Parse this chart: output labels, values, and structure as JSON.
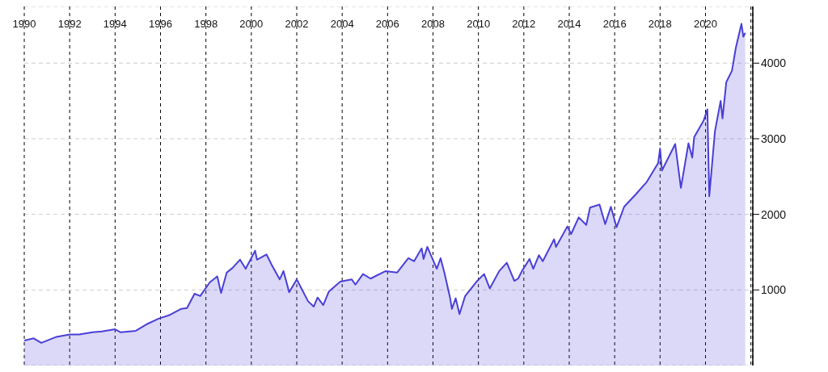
{
  "chart_data": {
    "type": "area",
    "x": [
      "1990-01",
      "1990-06",
      "1990-10",
      "1991-01",
      "1991-06",
      "1992-01",
      "1992-06",
      "1993-01",
      "1993-06",
      "1994-01",
      "1994-04",
      "1994-12",
      "1995-06",
      "1995-12",
      "1996-06",
      "1996-12",
      "1997-03",
      "1997-07",
      "1997-10",
      "1998-03",
      "1998-07",
      "1998-09",
      "1998-12",
      "1999-03",
      "1999-07",
      "1999-10",
      "2000-03",
      "2000-04",
      "2000-09",
      "2000-12",
      "2001-04",
      "2001-06",
      "2001-09",
      "2002-01",
      "2002-07",
      "2002-10",
      "2002-12",
      "2003-03",
      "2003-06",
      "2003-12",
      "2004-06",
      "2004-08",
      "2004-12",
      "2005-04",
      "2005-12",
      "2006-06",
      "2006-12",
      "2007-03",
      "2007-07",
      "2007-08",
      "2007-10",
      "2008-03",
      "2008-05",
      "2008-07",
      "2008-10",
      "2008-11",
      "2009-01",
      "2009-03",
      "2009-06",
      "2009-12",
      "2010-04",
      "2010-07",
      "2010-12",
      "2011-04",
      "2011-08",
      "2011-10",
      "2011-12",
      "2012-04",
      "2012-06",
      "2012-09",
      "2012-11",
      "2013-05",
      "2013-06",
      "2013-12",
      "2014-02",
      "2014-06",
      "2014-10",
      "2014-12",
      "2015-05",
      "2015-08",
      "2015-11",
      "2016-02",
      "2016-06",
      "2016-12",
      "2017-06",
      "2017-12",
      "2018-01",
      "2018-02",
      "2018-09",
      "2018-12",
      "2019-04",
      "2019-06",
      "2019-07",
      "2019-12",
      "2020-02",
      "2020-03",
      "2020-06",
      "2020-09",
      "2020-10",
      "2020-12",
      "2021-03",
      "2021-05",
      "2021-08",
      "2021-09",
      "2021-10"
    ],
    "series": [
      {
        "color": "#4a3fd6",
        "values": [
          330,
          360,
          300,
          330,
          380,
          410,
          410,
          440,
          450,
          480,
          440,
          460,
          550,
          620,
          670,
          750,
          760,
          950,
          920,
          1100,
          1180,
          960,
          1230,
          1290,
          1400,
          1280,
          1520,
          1400,
          1470,
          1320,
          1140,
          1250,
          970,
          1140,
          850,
          780,
          900,
          800,
          980,
          1110,
          1140,
          1070,
          1210,
          1150,
          1250,
          1230,
          1420,
          1380,
          1550,
          1410,
          1570,
          1280,
          1420,
          1230,
          900,
          750,
          890,
          680,
          920,
          1110,
          1210,
          1020,
          1250,
          1360,
          1120,
          1150,
          1250,
          1410,
          1280,
          1460,
          1380,
          1670,
          1570,
          1840,
          1740,
          1960,
          1860,
          2090,
          2130,
          1870,
          2100,
          1830,
          2100,
          2260,
          2430,
          2680,
          2870,
          2580,
          2930,
          2350,
          2940,
          2750,
          3020,
          3240,
          3390,
          2240,
          3100,
          3500,
          3270,
          3750,
          3900,
          4200,
          4520,
          4350,
          4400
        ]
      }
    ],
    "xlim": [
      "1990-01",
      "2022-02"
    ],
    "xticks": [
      "1990",
      "1992",
      "1994",
      "1996",
      "1998",
      "2000",
      "2002",
      "2004",
      "2006",
      "2008",
      "2010",
      "2012",
      "2014",
      "2016",
      "2018",
      "2020",
      {
        "value": "2022",
        "label": null
      }
    ],
    "ylim": [
      0,
      4750
    ],
    "yticks": [
      1000,
      2000,
      3000,
      4000
    ],
    "grid": true,
    "legend": false
  }
}
